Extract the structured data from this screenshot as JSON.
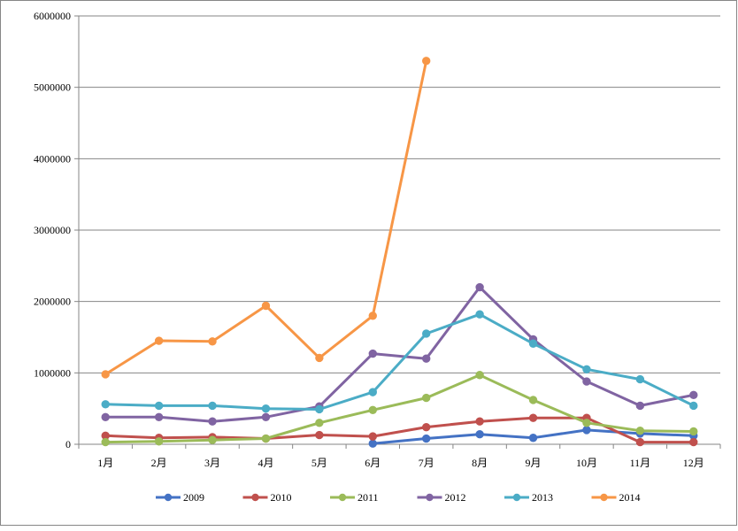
{
  "chart_data": {
    "type": "line",
    "title": "",
    "xlabel": "",
    "ylabel": "",
    "categories": [
      "1月",
      "2月",
      "3月",
      "4月",
      "5月",
      "6月",
      "7月",
      "8月",
      "9月",
      "10月",
      "11月",
      "12月"
    ],
    "ylim": [
      0,
      6000000
    ],
    "yticks": [
      "0",
      "1000000",
      "2000000",
      "3000000",
      "4000000",
      "5000000",
      "6000000"
    ],
    "grid": true,
    "legend_position": "bottom",
    "series": [
      {
        "name": "2009",
        "color": "#4472C4",
        "values": [
          null,
          null,
          null,
          null,
          null,
          10000,
          80000,
          140000,
          90000,
          200000,
          150000,
          120000
        ]
      },
      {
        "name": "2010",
        "color": "#C0504D",
        "values": [
          120000,
          90000,
          100000,
          80000,
          130000,
          110000,
          240000,
          320000,
          370000,
          370000,
          30000,
          30000
        ]
      },
      {
        "name": "2011",
        "color": "#9BBB59",
        "values": [
          30000,
          40000,
          60000,
          80000,
          300000,
          480000,
          650000,
          970000,
          620000,
          300000,
          190000,
          180000
        ]
      },
      {
        "name": "2012",
        "color": "#8064A2",
        "values": [
          380000,
          380000,
          320000,
          380000,
          530000,
          1270000,
          1200000,
          2200000,
          1470000,
          880000,
          540000,
          690000
        ]
      },
      {
        "name": "2013",
        "color": "#4BACC6",
        "values": [
          560000,
          540000,
          540000,
          500000,
          490000,
          730000,
          1550000,
          1820000,
          1410000,
          1050000,
          910000,
          540000
        ]
      },
      {
        "name": "2014",
        "color": "#F79646",
        "values": [
          980000,
          1450000,
          1440000,
          1940000,
          1210000,
          1800000,
          5370000,
          null,
          null,
          null,
          null,
          null
        ]
      }
    ]
  }
}
